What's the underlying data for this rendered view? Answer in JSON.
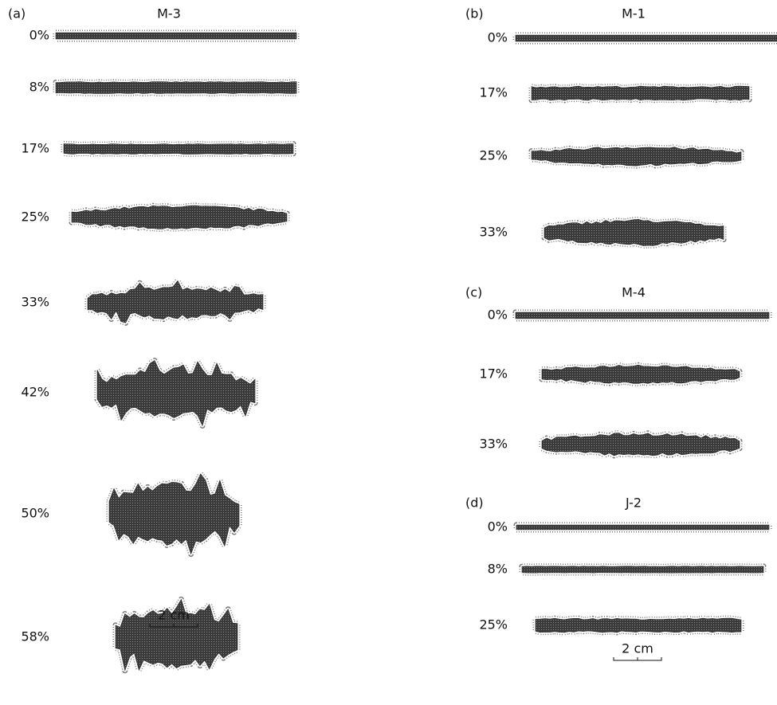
{
  "panels": [
    {
      "label": "(a)",
      "title": "M-3",
      "rows": [
        "0%",
        "8%",
        "17%",
        "25%",
        "33%",
        "42%",
        "50%",
        "58%"
      ],
      "scale": "2 cm"
    },
    {
      "label": "(b)",
      "title": "M-1",
      "rows": [
        "0%",
        "17%",
        "25%",
        "33%"
      ]
    },
    {
      "label": "(c)",
      "title": "M-4",
      "rows": [
        "0%",
        "17%",
        "33%"
      ]
    },
    {
      "label": "(d)",
      "title": "J-2",
      "rows": [
        "0%",
        "8%",
        "25%"
      ],
      "scale": "2 cm"
    }
  ]
}
